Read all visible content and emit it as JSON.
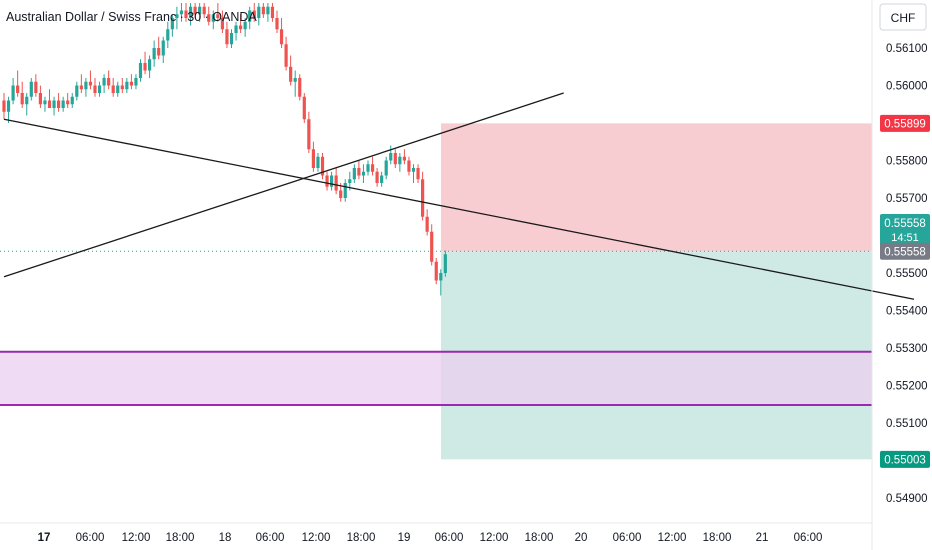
{
  "title": "Australian Dollar / Swiss Franc · 30 · OANDA",
  "currency": "CHF",
  "colors": {
    "up": "#26a69a",
    "down": "#ef5350",
    "trend": "#1a1a1a",
    "stop_zone": "#f8cdd1",
    "target_zone": "#cfeae4",
    "demand_zone": "#e9cff0",
    "demand_border": "#9c27b0",
    "current_price_line": "#26a69a",
    "axis_text": "#131722"
  },
  "chart_data": {
    "type": "candlestick",
    "title": "Australian Dollar / Swiss Franc · 30 · OANDA",
    "y_axis": {
      "unit": "CHF",
      "min": 0.5485,
      "max": 0.5622,
      "ticks": [
        "0.56100",
        "0.56000",
        "0.55800",
        "0.55700",
        "0.55500",
        "0.55400",
        "0.55300",
        "0.55200",
        "0.55100",
        "0.54900"
      ]
    },
    "x_axis": {
      "ticks": [
        "17",
        "06:00",
        "12:00",
        "18:00",
        "18",
        "06:00",
        "12:00",
        "18:00",
        "19",
        "06:00",
        "12:00",
        "18:00",
        "20",
        "06:00",
        "12:00",
        "18:00",
        "21",
        "06:00"
      ]
    },
    "price_labels": {
      "stop_loss": "0.55899",
      "current_price": "0.55558",
      "countdown": "14:51",
      "entry": "0.55558",
      "take_profit": "0.55003"
    },
    "position": {
      "type": "short",
      "entry": 0.55558,
      "stop_loss": 0.55899,
      "take_profit": 0.55003
    },
    "zone": {
      "top": 0.5529,
      "bottom": 0.55148
    },
    "trendlines": [
      {
        "start": [
          0,
          0.5591
        ],
        "end": [
          200,
          0.5543
        ]
      },
      {
        "start": [
          0,
          0.5549
        ],
        "end": [
          123,
          0.5598
        ]
      }
    ],
    "candles": [
      [
        0.5596,
        0.5598,
        0.5591,
        0.5593
      ],
      [
        0.5593,
        0.5597,
        0.559,
        0.5596
      ],
      [
        0.5596,
        0.5602,
        0.5595,
        0.56
      ],
      [
        0.56,
        0.5604,
        0.5597,
        0.5598
      ],
      [
        0.5598,
        0.5601,
        0.5594,
        0.5595
      ],
      [
        0.5595,
        0.5598,
        0.5592,
        0.5597
      ],
      [
        0.5597,
        0.5602,
        0.5596,
        0.5601
      ],
      [
        0.5601,
        0.5603,
        0.5597,
        0.5598
      ],
      [
        0.5598,
        0.56,
        0.5594,
        0.5595
      ],
      [
        0.5595,
        0.5597,
        0.5593,
        0.5596
      ],
      [
        0.5596,
        0.5599,
        0.5594,
        0.5594
      ],
      [
        0.5594,
        0.5597,
        0.5592,
        0.5596
      ],
      [
        0.5596,
        0.5598,
        0.5593,
        0.5594
      ],
      [
        0.5594,
        0.5597,
        0.5593,
        0.5596
      ],
      [
        0.5596,
        0.5598,
        0.5594,
        0.5595
      ],
      [
        0.5595,
        0.5598,
        0.5594,
        0.5597
      ],
      [
        0.5597,
        0.5601,
        0.5596,
        0.56
      ],
      [
        0.56,
        0.5603,
        0.5598,
        0.5599
      ],
      [
        0.5599,
        0.5602,
        0.5597,
        0.5601
      ],
      [
        0.5601,
        0.5604,
        0.5599,
        0.56
      ],
      [
        0.56,
        0.5602,
        0.5597,
        0.5598
      ],
      [
        0.5598,
        0.5601,
        0.5597,
        0.56
      ],
      [
        0.56,
        0.5603,
        0.5598,
        0.5602
      ],
      [
        0.5602,
        0.5604,
        0.5599,
        0.56
      ],
      [
        0.56,
        0.5602,
        0.5597,
        0.5598
      ],
      [
        0.5598,
        0.5601,
        0.5597,
        0.56
      ],
      [
        0.56,
        0.5602,
        0.5598,
        0.5599
      ],
      [
        0.5599,
        0.5602,
        0.5598,
        0.5601
      ],
      [
        0.5601,
        0.5603,
        0.5599,
        0.56
      ],
      [
        0.56,
        0.5603,
        0.5599,
        0.5602
      ],
      [
        0.5602,
        0.5607,
        0.5601,
        0.5606
      ],
      [
        0.5606,
        0.5609,
        0.5603,
        0.5604
      ],
      [
        0.5604,
        0.5608,
        0.5602,
        0.5607
      ],
      [
        0.5607,
        0.5612,
        0.5605,
        0.561
      ],
      [
        0.561,
        0.5613,
        0.5607,
        0.5608
      ],
      [
        0.5608,
        0.5613,
        0.5606,
        0.5612
      ],
      [
        0.5612,
        0.5617,
        0.561,
        0.5615
      ],
      [
        0.5615,
        0.5619,
        0.5613,
        0.5618
      ],
      [
        0.5618,
        0.5621,
        0.5615,
        0.5619
      ],
      [
        0.5619,
        0.5622,
        0.5617,
        0.562
      ],
      [
        0.562,
        0.5622,
        0.5617,
        0.5618
      ],
      [
        0.5618,
        0.5622,
        0.5616,
        0.5621
      ],
      [
        0.5621,
        0.5622,
        0.5618,
        0.5619
      ],
      [
        0.5619,
        0.5622,
        0.5617,
        0.5621
      ],
      [
        0.5621,
        0.5622,
        0.5618,
        0.5619
      ],
      [
        0.5619,
        0.5621,
        0.5616,
        0.5617
      ],
      [
        0.5617,
        0.562,
        0.5615,
        0.5619
      ],
      [
        0.5619,
        0.5622,
        0.5617,
        0.5618
      ],
      [
        0.5618,
        0.562,
        0.5614,
        0.5615
      ],
      [
        0.5615,
        0.5617,
        0.561,
        0.5611
      ],
      [
        0.5611,
        0.5615,
        0.561,
        0.5614
      ],
      [
        0.5614,
        0.5617,
        0.5612,
        0.5616
      ],
      [
        0.5616,
        0.5619,
        0.5614,
        0.5615
      ],
      [
        0.5615,
        0.5618,
        0.5613,
        0.5617
      ],
      [
        0.5617,
        0.5621,
        0.5615,
        0.562
      ],
      [
        0.562,
        0.5622,
        0.5617,
        0.5618
      ],
      [
        0.5618,
        0.5622,
        0.5616,
        0.5621
      ],
      [
        0.5621,
        0.5622,
        0.5618,
        0.5619
      ],
      [
        0.5619,
        0.5622,
        0.5617,
        0.5621
      ],
      [
        0.5621,
        0.5622,
        0.5617,
        0.5618
      ],
      [
        0.5618,
        0.562,
        0.5614,
        0.5615
      ],
      [
        0.5615,
        0.5618,
        0.561,
        0.5611
      ],
      [
        0.5611,
        0.5613,
        0.5604,
        0.5605
      ],
      [
        0.5605,
        0.5608,
        0.56,
        0.5601
      ],
      [
        0.5601,
        0.5604,
        0.5597,
        0.5602
      ],
      [
        0.5602,
        0.5603,
        0.5596,
        0.5597
      ],
      [
        0.5597,
        0.5598,
        0.559,
        0.5591
      ],
      [
        0.5591,
        0.5593,
        0.5582,
        0.5583
      ],
      [
        0.5583,
        0.5585,
        0.5577,
        0.5578
      ],
      [
        0.5578,
        0.5582,
        0.5577,
        0.5581
      ],
      [
        0.5581,
        0.5582,
        0.5575,
        0.5576
      ],
      [
        0.5576,
        0.5577,
        0.5572,
        0.5573
      ],
      [
        0.5573,
        0.5577,
        0.5572,
        0.5576
      ],
      [
        0.5576,
        0.5578,
        0.5571,
        0.5572
      ],
      [
        0.5572,
        0.5574,
        0.5569,
        0.557
      ],
      [
        0.557,
        0.5575,
        0.5569,
        0.5574
      ],
      [
        0.5574,
        0.5577,
        0.5572,
        0.5575
      ],
      [
        0.5575,
        0.5579,
        0.5574,
        0.5578
      ],
      [
        0.5578,
        0.558,
        0.5575,
        0.5576
      ],
      [
        0.5576,
        0.5579,
        0.5574,
        0.5577
      ],
      [
        0.5577,
        0.558,
        0.5576,
        0.5579
      ],
      [
        0.5579,
        0.5581,
        0.5576,
        0.5577
      ],
      [
        0.5577,
        0.5578,
        0.5573,
        0.5574
      ],
      [
        0.5574,
        0.5577,
        0.5573,
        0.5576
      ],
      [
        0.5576,
        0.5581,
        0.5575,
        0.558
      ],
      [
        0.558,
        0.5584,
        0.5579,
        0.5582
      ],
      [
        0.5582,
        0.5583,
        0.5578,
        0.5579
      ],
      [
        0.5579,
        0.5582,
        0.5577,
        0.5581
      ],
      [
        0.5581,
        0.5583,
        0.5579,
        0.558
      ],
      [
        0.558,
        0.5581,
        0.5576,
        0.5577
      ],
      [
        0.5577,
        0.5579,
        0.5574,
        0.5578
      ],
      [
        0.5578,
        0.5579,
        0.5574,
        0.5575
      ],
      [
        0.5575,
        0.5577,
        0.5564,
        0.5565
      ],
      [
        0.5565,
        0.5567,
        0.556,
        0.5561
      ],
      [
        0.5561,
        0.5563,
        0.5552,
        0.5553
      ],
      [
        0.5553,
        0.5554,
        0.5547,
        0.5548
      ],
      [
        0.5548,
        0.5551,
        0.5544,
        0.555
      ],
      [
        0.555,
        0.5556,
        0.5549,
        0.5555
      ]
    ]
  }
}
